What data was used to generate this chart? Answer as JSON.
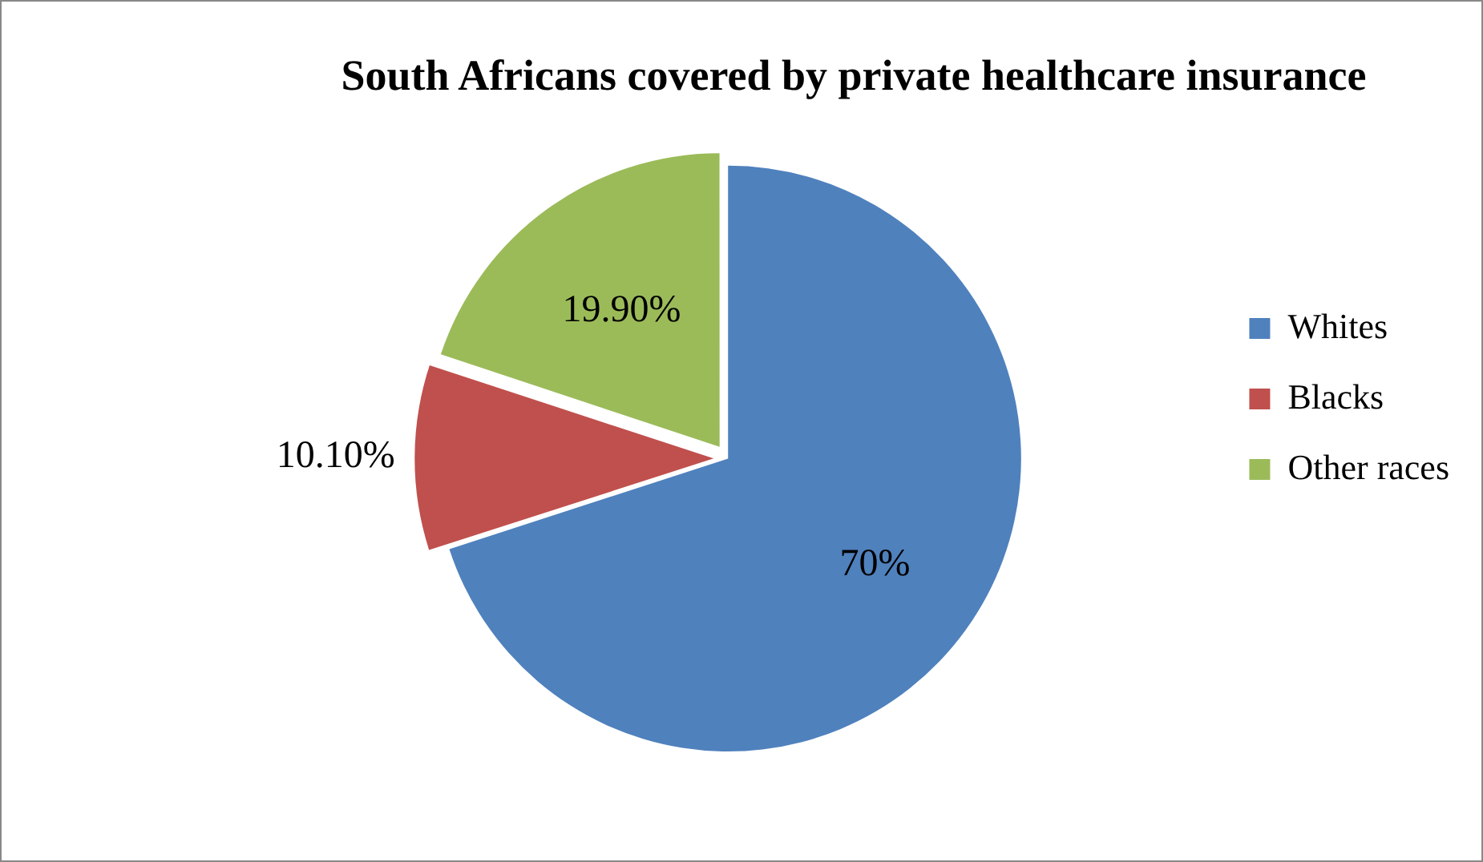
{
  "chart_data": {
    "type": "pie",
    "title": "South Africans covered by private healthcare insurance",
    "categories": [
      "Whites",
      "Blacks",
      "Other races"
    ],
    "values": [
      70,
      10.1,
      19.9
    ],
    "value_labels": [
      "70%",
      "10.10%",
      "19.90%"
    ],
    "colors": [
      "#4f81bd",
      "#c0504d",
      "#9bbb59"
    ],
    "legend": "right"
  }
}
